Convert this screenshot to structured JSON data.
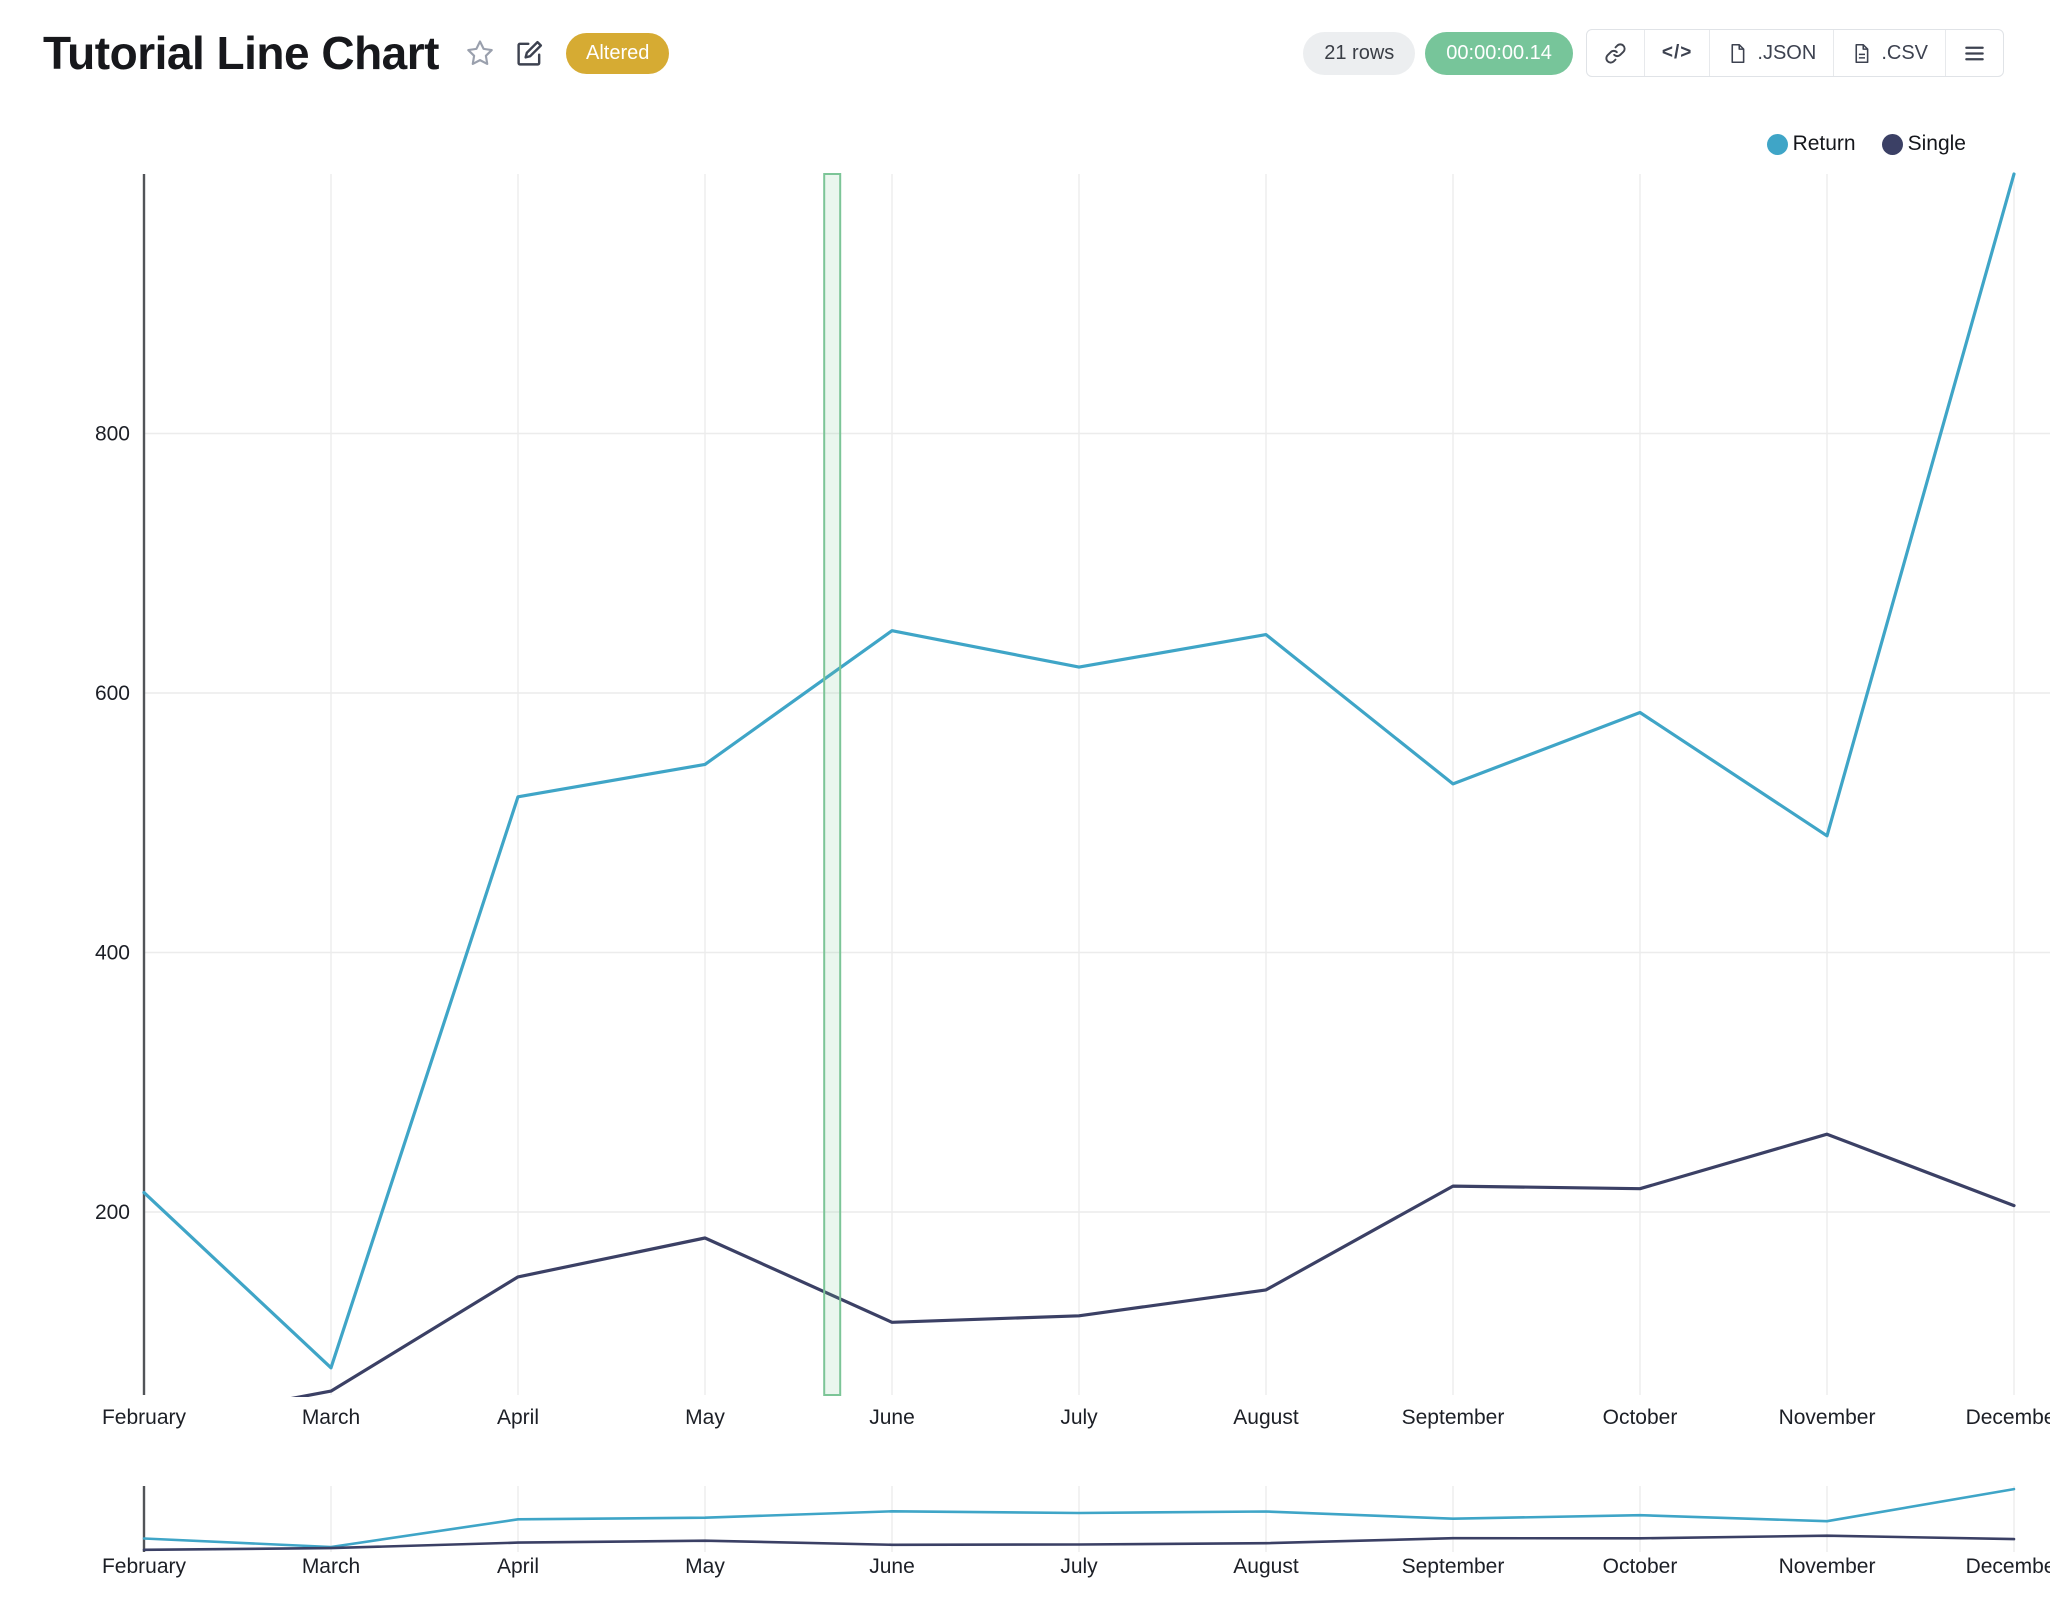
{
  "header": {
    "title": "Tutorial Line Chart",
    "status_badge": "Altered",
    "rows_count": "21 rows",
    "runtime": "00:00:00.14",
    "buttons": {
      "code": "</>",
      "json": ".JSON",
      "csv": ".CSV"
    }
  },
  "legend": [
    {
      "label": "Return",
      "color": "#3fa5c7"
    },
    {
      "label": "Single",
      "color": "#3b4065"
    }
  ],
  "chart_data": {
    "type": "line",
    "title": "Tutorial Line Chart",
    "categories": [
      "February",
      "March",
      "April",
      "May",
      "June",
      "July",
      "August",
      "September",
      "October",
      "November",
      "December"
    ],
    "series": [
      {
        "name": "Return",
        "color": "#3fa5c7",
        "values": [
          215,
          80,
          520,
          545,
          648,
          620,
          645,
          530,
          585,
          490,
          1000
        ]
      },
      {
        "name": "Single",
        "color": "#3b4065",
        "values": [
          35,
          62,
          150,
          180,
          115,
          120,
          140,
          220,
          218,
          260,
          205
        ]
      }
    ],
    "yticks": [
      200,
      400,
      600,
      800
    ],
    "ylim": [
      59,
      1000
    ],
    "grid": true,
    "legend_position": "top-right",
    "annotation": {
      "type": "vertical-marker",
      "between": [
        "May",
        "June"
      ],
      "fraction": 0.68,
      "fill": "rgba(124,197,151,0.16)",
      "stroke": "#7cc597"
    },
    "overview_strip": "miniature copy of both series with repeated month axis shown below main chart (range selector)"
  }
}
